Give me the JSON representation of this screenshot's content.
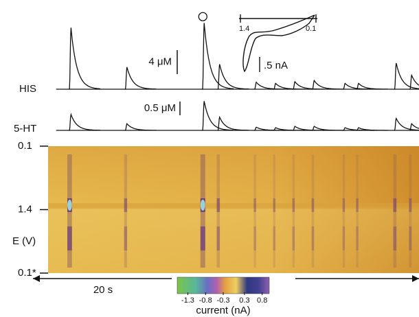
{
  "chart_data": {
    "type": "fscv",
    "xlim": [
      0,
      20
    ],
    "time_scale_label": "20 s",
    "traces": [
      {
        "name": "HIS",
        "scale_label": "4 μM",
        "scale_value": 4
      },
      {
        "name": "5-HT",
        "scale_label": "0.5 μM",
        "scale_value": 0.5
      }
    ],
    "events": {
      "x": [
        1.9,
        4.8,
        8.8,
        9.6,
        11.5,
        12.5,
        13.5,
        14.5,
        16.1,
        16.8,
        18.75,
        19.55
      ],
      "his": [
        10.6,
        3.8,
        11.4,
        4.3,
        1.2,
        1.0,
        1.3,
        1.5,
        1.0,
        1.0,
        4.5,
        2.4
      ],
      "ht5": [
        0.6,
        0.25,
        1.1,
        0.5,
        0.12,
        0.1,
        0.15,
        0.15,
        0.1,
        0.1,
        0.45,
        0.25
      ]
    },
    "e_axis_label": "E (V)",
    "e_ticks": [
      "0.1",
      "1.4",
      "0.1*"
    ],
    "cv_inset": {
      "x_labels": [
        "1.4",
        "0.1"
      ],
      "scale_label": ".5 nA"
    },
    "colorbar": {
      "label": "current (nA)",
      "clim": [
        -1.6,
        1.0
      ],
      "ticks": [
        -1.3,
        -0.8,
        -0.3,
        0.3,
        0.8
      ]
    }
  }
}
